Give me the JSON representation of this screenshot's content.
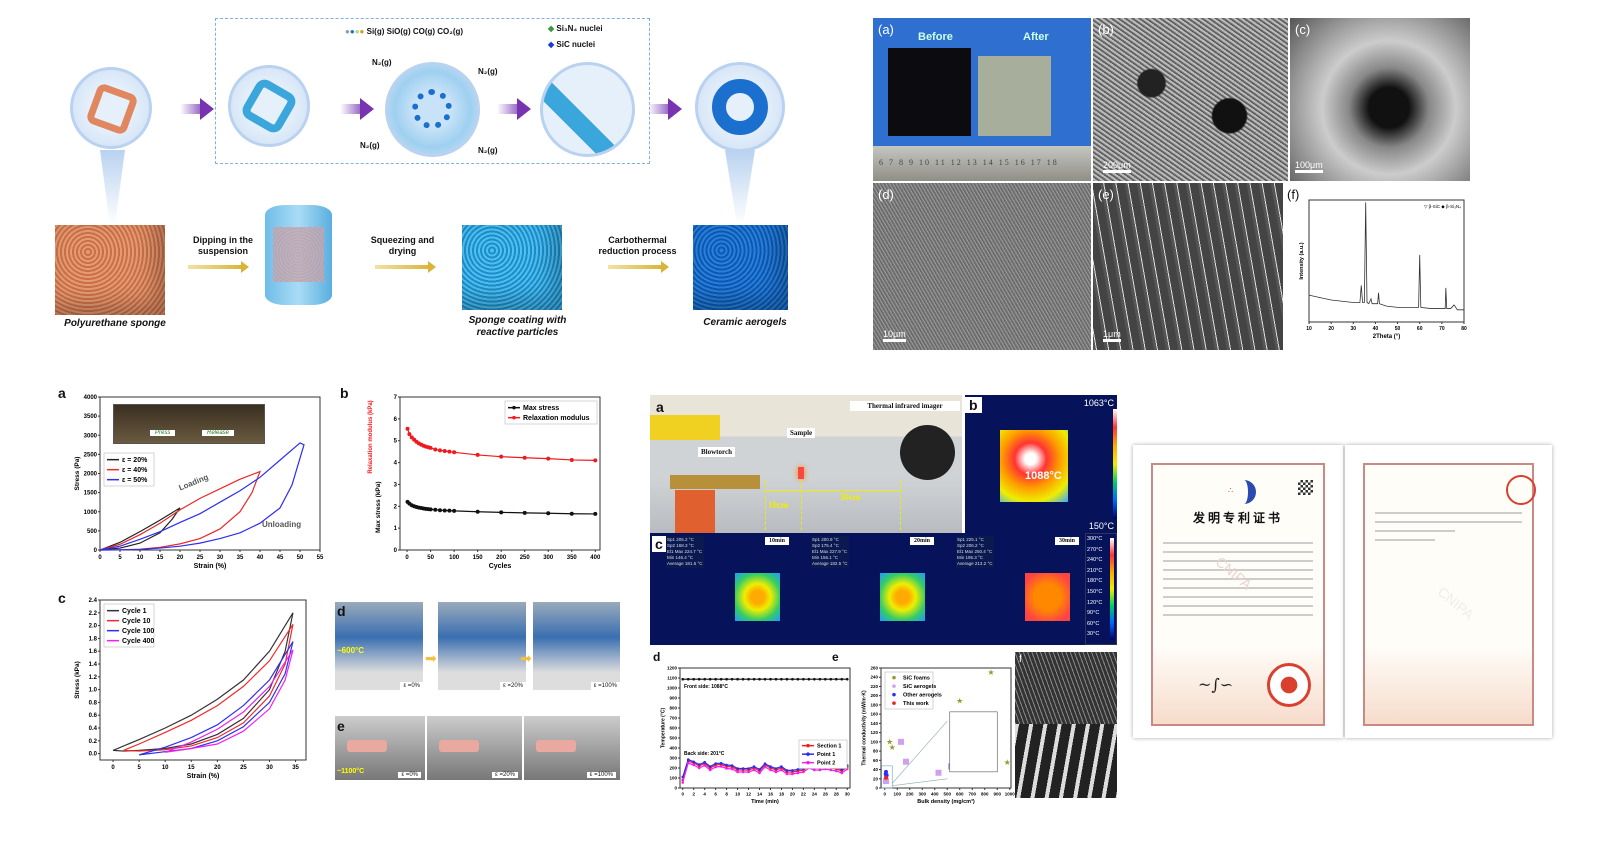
{
  "schematic": {
    "legend_gases": "Si(g)  SiO(g)  CO(g)  CO₂(g)",
    "legend_si3n4": "Si₃N₄ nuclei",
    "legend_sic": "SiC nuclei",
    "n2_label": "N₂(g)",
    "steps": [
      "Dipping in the suspension",
      "Squeezing and drying",
      "Carbothermal reduction process"
    ],
    "captions": [
      "Polyurethane sponge",
      "Sponge coating with reactive particles",
      "Ceramic aerogels"
    ],
    "colors": {
      "sponge": "#e0875f",
      "coated": "#3aa6dc",
      "ceramic": "#1a6fcf",
      "arrow": "#7a33b0"
    }
  },
  "sem": {
    "a_label": "(a)",
    "before": "Before",
    "after": "After",
    "ruler": "6 7 8 9 10 11 12 13 14 15 16 17 18",
    "b_label": "(b)",
    "b_scale": "200μm",
    "c_label": "(c)",
    "c_scale": "100μm",
    "d_label": "(d)",
    "d_scale": "10μm",
    "e_label": "(e)",
    "e_scale": "1μm",
    "f_label": "(f)"
  },
  "mech": {
    "a": "a",
    "b": "b",
    "c": "c",
    "d": "d",
    "e": "e",
    "press": "Press",
    "release": "Release",
    "loading": "Loading",
    "unloading": "Unloading",
    "d_temp": "~600°C",
    "e_temp": "~1100°C",
    "strains": [
      "ε =0%",
      "ε =20%",
      "ε =100%"
    ]
  },
  "thermal": {
    "a": "a",
    "b": "b",
    "c": "c",
    "d": "d",
    "e": "e",
    "f": "f",
    "blowtorch": "Blowtorch",
    "sample": "Sample",
    "imager": "Thermal infrared imager",
    "dist1": "10cm",
    "dist2": "30cm",
    "b_max": "1063°C",
    "b_min": "150°C",
    "b_spot": "1088°C",
    "times": [
      "10min",
      "20min",
      "30min"
    ],
    "scale": [
      "300°C",
      "270°C",
      "240°C",
      "210°C",
      "180°C",
      "150°C",
      "120°C",
      "90°C",
      "60°C",
      "30°C"
    ],
    "readouts": [
      [
        "Sp1  205.2 °C",
        "Sp2  168.3 °C",
        "El1 Max 224.7 °C",
        "Min 146.4 °C",
        "Average 181.5 °C"
      ],
      [
        "Sp1  200.9 °C",
        "Sp2  175.4 °C",
        "El1 Max 227.9 °C",
        "Min 156.1 °C",
        "Average 182.5 °C"
      ],
      [
        "Sp1  225.1 °C",
        "Sp2  206.2 °C",
        "El1 Max 250.4 °C",
        "Min 195.3 °C",
        "Average 213.2 °C"
      ]
    ]
  },
  "certificate": {
    "title": "发明专利证书",
    "watermark": "CNIPA",
    "seal_color": "#d9402e",
    "border_color": "#c98a86"
  },
  "chart_data": [
    {
      "id": "xrd",
      "type": "line",
      "xlabel": "2Theta (°)",
      "ylabel": "Intensity (a.u.)",
      "legend": "▽ β-SiC  ◆ β-Si₃N₄",
      "xlim": [
        10,
        80
      ],
      "ylim": [
        0,
        100
      ],
      "xticks": [
        10,
        20,
        30,
        40,
        50,
        60,
        70,
        80
      ],
      "yticks": [],
      "series": [
        {
          "color": "#333",
          "x": [
            10,
            15,
            20,
            25,
            30,
            33,
            33.6,
            34.2,
            35,
            35.6,
            36.2,
            37,
            38,
            38.5,
            39,
            41,
            41.4,
            41.8,
            45,
            50,
            55,
            59.5,
            60,
            60.5,
            65,
            70,
            71.5,
            71.8,
            72.2,
            74,
            75.5,
            77,
            80
          ],
          "y": [
            22,
            20,
            18,
            17,
            16,
            16,
            30,
            16,
            16,
            98,
            16,
            15,
            19,
            15,
            15,
            15,
            24,
            15,
            13,
            12,
            12,
            12,
            55,
            12,
            11,
            11,
            11,
            28,
            11,
            11,
            14,
            10,
            10
          ]
        }
      ]
    },
    {
      "id": "a",
      "type": "line",
      "xlabel": "Strain (%)",
      "ylabel": "Stress (Pa)",
      "xlim": [
        0,
        55
      ],
      "ylim": [
        0,
        4000
      ],
      "xticks": [
        0,
        5,
        10,
        15,
        20,
        25,
        30,
        35,
        40,
        45,
        50,
        55
      ],
      "yticks": [
        0,
        500,
        1000,
        1500,
        2000,
        2500,
        3000,
        3500,
        4000
      ],
      "legend_pos": "top-left",
      "series": [
        {
          "name": "ε = 20%",
          "color": "#222",
          "x": [
            0,
            5,
            10,
            15,
            20,
            18,
            15,
            10,
            5,
            0
          ],
          "y": [
            0,
            200,
            480,
            780,
            1100,
            800,
            450,
            180,
            50,
            0
          ]
        },
        {
          "name": "ε = 40%",
          "color": "#e8282a",
          "x": [
            0,
            5,
            10,
            15,
            20,
            25,
            30,
            35,
            40,
            38,
            35,
            30,
            25,
            20,
            15,
            10,
            5,
            0
          ],
          "y": [
            0,
            150,
            400,
            700,
            1050,
            1350,
            1600,
            1850,
            2050,
            1500,
            1000,
            550,
            300,
            160,
            70,
            20,
            5,
            0
          ]
        },
        {
          "name": "ε = 50%",
          "color": "#2b2ff0",
          "x": [
            0,
            5,
            10,
            15,
            20,
            25,
            30,
            35,
            40,
            45,
            50,
            51,
            48,
            45,
            40,
            35,
            30,
            25,
            20,
            15,
            10,
            5,
            0
          ],
          "y": [
            0,
            100,
            280,
            480,
            720,
            950,
            1250,
            1550,
            1900,
            2350,
            2800,
            2750,
            1700,
            1100,
            700,
            450,
            300,
            180,
            100,
            50,
            15,
            3,
            0
          ]
        }
      ]
    },
    {
      "id": "b",
      "type": "line",
      "xlabel": "Cycles",
      "ylabel": "Max stress (kPa)",
      "ylabel2": "Relaxation modulus (kPa)",
      "xlim": [
        -15,
        410
      ],
      "ylim": [
        0,
        7
      ],
      "xticks": [
        0,
        50,
        100,
        150,
        200,
        250,
        300,
        350,
        400
      ],
      "yticks": [
        0,
        1,
        2,
        3,
        4,
        5,
        6,
        7
      ],
      "legend_pos": "top-right",
      "x": [
        1,
        5,
        10,
        15,
        20,
        25,
        30,
        35,
        40,
        45,
        50,
        60,
        70,
        80,
        90,
        100,
        150,
        200,
        250,
        300,
        350,
        400
      ],
      "series": [
        {
          "name": "Max stress",
          "color": "#111",
          "y": [
            2.2,
            2.12,
            2.05,
            2.0,
            1.97,
            1.94,
            1.92,
            1.9,
            1.88,
            1.87,
            1.86,
            1.84,
            1.82,
            1.81,
            1.8,
            1.79,
            1.75,
            1.72,
            1.7,
            1.68,
            1.66,
            1.65
          ]
        },
        {
          "name": "Relaxation modulus",
          "color": "#f0191e",
          "y": [
            5.55,
            5.3,
            5.15,
            5.05,
            4.95,
            4.88,
            4.82,
            4.77,
            4.73,
            4.7,
            4.67,
            4.6,
            4.56,
            4.53,
            4.5,
            4.47,
            4.35,
            4.27,
            4.22,
            4.18,
            4.12,
            4.1
          ]
        }
      ]
    },
    {
      "id": "c",
      "type": "line",
      "xlabel": "Strain (%)",
      "ylabel": "Stress (kPa)",
      "xlim": [
        -2.5,
        37
      ],
      "ylim": [
        -0.1,
        2.4
      ],
      "xticks": [
        0,
        5,
        10,
        15,
        20,
        25,
        30,
        35
      ],
      "yticks": [
        0,
        0.2,
        0.4,
        0.6,
        0.8,
        1.0,
        1.2,
        1.4,
        1.6,
        1.8,
        2.0,
        2.2,
        2.4
      ],
      "legend_pos": "top-left",
      "series": [
        {
          "name": "Cycle 1",
          "color": "#333",
          "x": [
            0,
            5,
            10,
            15,
            20,
            25,
            30,
            34.5,
            33,
            30,
            25,
            20,
            15,
            10,
            5,
            2,
            0
          ],
          "y": [
            0.05,
            0.22,
            0.4,
            0.6,
            0.85,
            1.15,
            1.6,
            2.2,
            1.6,
            1.0,
            0.55,
            0.3,
            0.15,
            0.08,
            0.05,
            0.04,
            0.05
          ]
        },
        {
          "name": "Cycle 10",
          "color": "#f02a2a",
          "x": [
            2,
            5,
            10,
            15,
            20,
            25,
            30,
            34.5,
            33,
            30,
            25,
            20,
            15,
            10,
            5,
            2
          ],
          "y": [
            0.05,
            0.15,
            0.33,
            0.52,
            0.75,
            1.05,
            1.45,
            2.02,
            1.4,
            0.9,
            0.48,
            0.25,
            0.12,
            0.06,
            0.04,
            0.05
          ]
        },
        {
          "name": "Cycle 100",
          "color": "#3030f0",
          "x": [
            5,
            10,
            15,
            20,
            25,
            30,
            34.5,
            33,
            30,
            25,
            20,
            15,
            10,
            5
          ],
          "y": [
            -0.02,
            0.1,
            0.25,
            0.45,
            0.75,
            1.15,
            1.75,
            1.25,
            0.8,
            0.42,
            0.2,
            0.08,
            0.03,
            -0.02
          ]
        },
        {
          "name": "Cycle 400",
          "color": "#f020f0",
          "x": [
            10,
            15,
            20,
            25,
            30,
            34.5,
            33,
            30,
            25,
            20,
            15,
            10
          ],
          "y": [
            0.02,
            0.18,
            0.38,
            0.65,
            1.05,
            1.62,
            1.15,
            0.7,
            0.35,
            0.15,
            0.08,
            0.02
          ]
        }
      ]
    },
    {
      "id": "d",
      "type": "line",
      "xlabel": "Time (min)",
      "ylabel": "Temperature (°C)",
      "xlim": [
        -0.5,
        30.5
      ],
      "ylim": [
        0,
        1200
      ],
      "xticks": [
        0,
        2,
        4,
        6,
        8,
        10,
        12,
        14,
        16,
        18,
        20,
        22,
        24,
        26,
        28,
        30
      ],
      "yticks": [
        0,
        100,
        200,
        300,
        400,
        500,
        600,
        700,
        800,
        900,
        1000,
        1100,
        1200
      ],
      "legend_pos": "right",
      "annotations": [
        "Front side: 1088°C",
        "Back side: 201°C"
      ],
      "x": [
        0,
        1,
        2,
        3,
        4,
        5,
        6,
        7,
        8,
        9,
        10,
        11,
        12,
        13,
        14,
        15,
        16,
        17,
        18,
        19,
        20,
        21,
        22,
        23,
        24,
        25,
        26,
        27,
        28,
        29,
        30
      ],
      "series": [
        {
          "name": "",
          "color": "#111",
          "y": [
            1088,
            1088,
            1088,
            1088,
            1088,
            1088,
            1088,
            1088,
            1088,
            1088,
            1088,
            1088,
            1088,
            1088,
            1088,
            1088,
            1088,
            1088,
            1088,
            1088,
            1088,
            1088,
            1088,
            1088,
            1088,
            1088,
            1088,
            1088,
            1088,
            1088,
            1088
          ]
        },
        {
          "name": "Section 1",
          "color": "#f02020",
          "y": [
            80,
            270,
            250,
            220,
            245,
            200,
            230,
            235,
            215,
            210,
            180,
            180,
            180,
            200,
            170,
            230,
            200,
            180,
            200,
            160,
            160,
            170,
            180,
            220,
            200,
            200,
            210,
            200,
            190,
            170,
            210
          ]
        },
        {
          "name": "Point 1",
          "color": "#2a2af0",
          "y": [
            110,
            285,
            262,
            235,
            258,
            215,
            245,
            248,
            230,
            225,
            195,
            195,
            195,
            214,
            186,
            243,
            214,
            195,
            214,
            176,
            176,
            186,
            196,
            234,
            214,
            214,
            224,
            214,
            204,
            186,
            224
          ]
        },
        {
          "name": "Point 2",
          "color": "#f020f0",
          "y": [
            55,
            250,
            230,
            200,
            225,
            180,
            210,
            215,
            195,
            190,
            160,
            160,
            160,
            180,
            150,
            210,
            180,
            160,
            180,
            140,
            140,
            150,
            160,
            200,
            180,
            180,
            190,
            180,
            170,
            150,
            190
          ]
        }
      ]
    },
    {
      "id": "e",
      "type": "scatter",
      "xlabel": "Bulk density (mg/cm³)",
      "ylabel": "Thermal conductivity (mW/m·K)",
      "xlim": [
        -30,
        1010
      ],
      "ylim": [
        0,
        260
      ],
      "xticks": [
        0,
        100,
        200,
        300,
        400,
        500,
        600,
        700,
        800,
        900,
        1000
      ],
      "yticks": [
        0,
        20,
        40,
        60,
        80,
        100,
        120,
        140,
        160,
        180,
        200,
        220,
        240,
        260
      ],
      "legend_pos": "top-left",
      "series": [
        {
          "name": "SiC foams",
          "color": "#9a9a2a",
          "marker": "star",
          "x": [
            40,
            60,
            600,
            850,
            980
          ],
          "y": [
            100,
            88,
            188,
            250,
            55
          ]
        },
        {
          "name": "SiC aerogels",
          "color": "#d0a0f0",
          "marker": "square",
          "x": [
            130,
            170,
            430,
            530,
            620,
            10
          ],
          "y": [
            100,
            57,
            33,
            47,
            57,
            15
          ]
        },
        {
          "name": "Other aerogels",
          "color": "#3030f0",
          "marker": "circle",
          "x": [
            10,
            8,
            12,
            15
          ],
          "y": [
            35,
            30,
            25,
            28
          ]
        },
        {
          "name": "This work",
          "color": "#f02020",
          "marker": "circle",
          "x": [
            10
          ],
          "y": [
            22
          ]
        }
      ]
    }
  ]
}
